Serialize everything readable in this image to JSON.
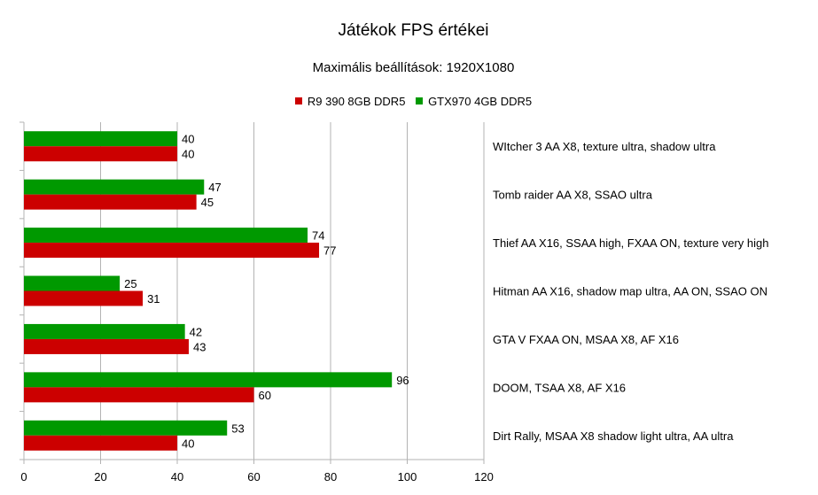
{
  "colors": {
    "r9": "#cc0000",
    "gtx": "#009900",
    "grid": "#b3b3b3"
  },
  "chart_data": {
    "type": "bar",
    "orientation": "horizontal",
    "title": "Játékok FPS értékei",
    "subtitle": "Maximális beállítások: 1920X1080",
    "categories": [
      "WItcher 3 AA X8, texture ultra, shadow ultra",
      "Tomb raider AA X8, SSAO ultra",
      "Thief AA X16, SSAA high, FXAA ON, texture very high",
      "Hitman AA X16, shadow map ultra, AA ON, SSAO ON",
      "GTA V FXAA ON, MSAA X8, AF X16",
      "DOOM, TSAA X8, AF X16",
      "Dirt Rally, MSAA X8 shadow light ultra, AA ultra"
    ],
    "series": [
      {
        "name": "R9 390 8GB DDR5",
        "values": [
          40,
          45,
          77,
          31,
          43,
          60,
          40
        ]
      },
      {
        "name": "GTX970 4GB DDR5",
        "values": [
          40,
          47,
          74,
          25,
          42,
          96,
          53
        ]
      }
    ],
    "xlim": [
      0,
      120
    ],
    "xticks": [
      "0",
      "20",
      "40",
      "60",
      "80",
      "100",
      "120"
    ],
    "grid": true,
    "legend_position": "top"
  }
}
